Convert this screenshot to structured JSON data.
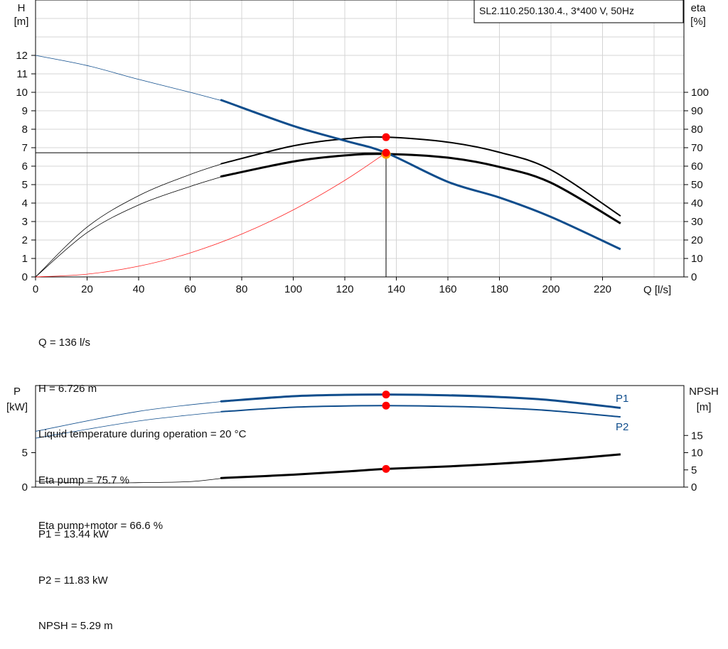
{
  "model_label": "SL2.110.250.130.4., 3*400 V, 50Hz",
  "colors": {
    "head": "#0f4d8c",
    "eta": "#000000",
    "system": "#ff2020",
    "grid": "#d4d4d4",
    "marker": "#ff0000",
    "power": "#0f4d8c"
  },
  "chart_data": [
    {
      "type": "line",
      "title": "",
      "xlabel": "Q [l/s]",
      "ylabel": "H [m]",
      "y2label": "eta [%]",
      "xlim": [
        0,
        240
      ],
      "ylim": [
        0,
        13
      ],
      "y2lim": [
        0,
        130
      ],
      "grid": true,
      "x_ticks": [
        "0",
        "20",
        "40",
        "60",
        "80",
        "100",
        "120",
        "140",
        "160",
        "180",
        "200",
        "220"
      ],
      "y_ticks": [
        "0",
        "1",
        "2",
        "3",
        "4",
        "5",
        "6",
        "7",
        "8",
        "9",
        "10",
        "11",
        "12"
      ],
      "y2_ticks": [
        "0",
        "10",
        "20",
        "30",
        "40",
        "50",
        "60",
        "70",
        "80",
        "90",
        "100"
      ],
      "y_axis_label": {
        "name": "H",
        "unit": "[m]"
      },
      "y2_axis_label": {
        "name": "eta",
        "unit": "[%]"
      },
      "range": {
        "x_min": 74,
        "x_max": 227
      },
      "series": [
        {
          "key": "head",
          "axis": "left",
          "x": [
            0,
            20,
            40,
            60,
            74,
            100,
            120,
            136,
            160,
            180,
            200,
            227
          ],
          "values": [
            12.0,
            11.45,
            10.7,
            10.0,
            9.48,
            8.18,
            7.38,
            6.726,
            5.15,
            4.3,
            3.25,
            1.5
          ]
        },
        {
          "key": "eta_pump",
          "axis": "right",
          "x": [
            0,
            20,
            40,
            60,
            74,
            100,
            120,
            136,
            160,
            180,
            200,
            227
          ],
          "values": [
            0,
            27,
            44,
            55.5,
            62,
            71,
            74.8,
            75.7,
            73,
            67.5,
            58,
            33
          ]
        },
        {
          "key": "eta_total",
          "axis": "right",
          "x": [
            0,
            20,
            40,
            60,
            74,
            100,
            120,
            136,
            160,
            180,
            200,
            227
          ],
          "values": [
            0,
            24,
            39,
            49,
            55,
            62.5,
            65.8,
            66.6,
            64.6,
            59.6,
            51,
            29
          ]
        },
        {
          "key": "system",
          "axis": "left",
          "x": [
            0,
            20,
            40,
            60,
            80,
            100,
            120,
            136
          ],
          "values": [
            0,
            0.15,
            0.58,
            1.3,
            2.32,
            3.63,
            5.23,
            6.726
          ]
        }
      ],
      "duty_point": {
        "x": 136,
        "y": 6.726,
        "eta_pump": 75.7
      }
    },
    {
      "type": "line",
      "title": "",
      "ylabel": "P [kW]",
      "y2label": "NPSH [m]",
      "xlim": [
        0,
        240
      ],
      "ylim": [
        0,
        16
      ],
      "y2lim": [
        0,
        24
      ],
      "grid": false,
      "y_ticks": [
        "0",
        "5"
      ],
      "y2_ticks": [
        "0",
        "5",
        "10",
        "15"
      ],
      "y_axis_label": {
        "name": "P",
        "unit": "[kW]"
      },
      "y2_axis_label": {
        "name": "NPSH",
        "unit": "[m]"
      },
      "series": [
        {
          "key": "P1",
          "name": "P1",
          "axis": "left",
          "x": [
            0,
            40,
            74,
            100,
            120,
            136,
            160,
            180,
            200,
            227
          ],
          "values": [
            8.1,
            11.0,
            12.5,
            13.2,
            13.4,
            13.44,
            13.33,
            13.08,
            12.62,
            11.5
          ]
        },
        {
          "key": "P2",
          "name": "P2",
          "axis": "left",
          "x": [
            0,
            40,
            74,
            100,
            120,
            136,
            160,
            180,
            200,
            227
          ],
          "values": [
            7.1,
            9.6,
            11.0,
            11.6,
            11.78,
            11.83,
            11.72,
            11.5,
            11.1,
            10.2
          ]
        },
        {
          "key": "npsh",
          "axis": "right",
          "x": [
            0,
            20,
            40,
            60,
            74,
            100,
            120,
            136,
            160,
            180,
            200,
            227
          ],
          "values": [
            1.7,
            1.2,
            1.3,
            1.6,
            2.7,
            3.6,
            4.5,
            5.29,
            6.0,
            6.8,
            7.8,
            9.5
          ]
        }
      ],
      "duty_point": {
        "x": 136,
        "P1": 13.44,
        "P2": 11.83,
        "npsh": 5.29
      }
    }
  ],
  "info_top": [
    "Q = 136 l/s",
    "H = 6.726 m",
    "Liquid temperature during operation = 20 °C",
    "Eta pump = 75.7 %",
    "Eta pump+motor = 66.6 %"
  ],
  "info_bottom": [
    "P1 = 13.44 kW",
    "P2 = 11.83 kW",
    "NPSH = 5.29 m"
  ]
}
